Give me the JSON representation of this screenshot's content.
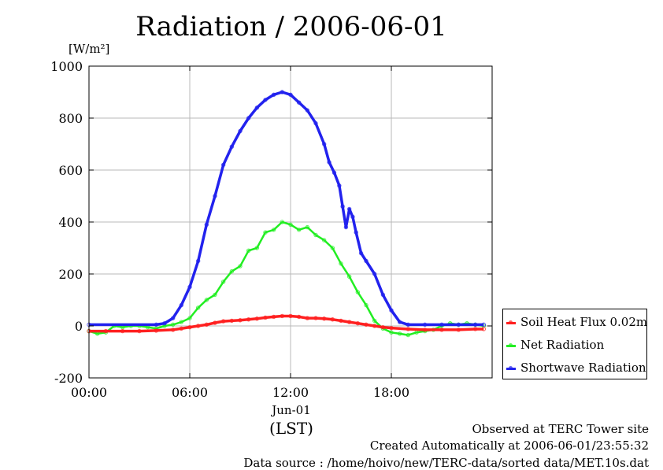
{
  "title": "Radiation / 2006-06-01",
  "unit_label": "[W/m²]",
  "x_date_label": "Jun-01",
  "x_axis_label": "(LST)",
  "footer": {
    "line1": "Observed at TERC Tower site",
    "line2": "Created Automatically at 2006-06-01/23:55:32",
    "line3": "Data source : /home/hoivo/new/TERC-data/sorted  data/MET.10s.dat"
  },
  "legend": [
    {
      "label": "Soil Heat Flux 0.02m",
      "color": "#ff2020"
    },
    {
      "label": "Net Radiation",
      "color": "#22ee22"
    },
    {
      "label": "Shortwave Radiation",
      "color": "#2222ee"
    }
  ],
  "chart_data": {
    "type": "line",
    "title": "Radiation / 2006-06-01",
    "ylabel": "[W/m²]",
    "xlabel": "(LST)",
    "xlim": [
      0,
      24
    ],
    "ylim": [
      -200,
      1000
    ],
    "y_ticks": [
      -200,
      0,
      200,
      400,
      600,
      800,
      1000
    ],
    "x_ticks": [
      {
        "x": 0,
        "label": "00:00"
      },
      {
        "x": 6,
        "label": "06:00"
      },
      {
        "x": 12,
        "label": "12:00"
      },
      {
        "x": 18,
        "label": "18:00"
      }
    ],
    "grid": true,
    "legend_position": "right",
    "series": [
      {
        "name": "Shortwave Radiation",
        "color": "#2222ee",
        "x": [
          0,
          4,
          4.5,
          5,
          5.5,
          6,
          6.5,
          7,
          7.5,
          8,
          8.5,
          9,
          9.5,
          10,
          10.5,
          11,
          11.5,
          12,
          12.5,
          13,
          13.5,
          14,
          14.3,
          14.6,
          14.9,
          15.1,
          15.3,
          15.5,
          15.7,
          15.9,
          16.2,
          16.5,
          17,
          17.5,
          18,
          18.5,
          19,
          20,
          21,
          22,
          23,
          23.5
        ],
        "y": [
          5,
          5,
          10,
          30,
          80,
          150,
          250,
          390,
          500,
          620,
          690,
          750,
          800,
          840,
          870,
          890,
          900,
          890,
          860,
          830,
          780,
          700,
          630,
          590,
          540,
          460,
          380,
          450,
          420,
          360,
          280,
          250,
          200,
          120,
          60,
          15,
          5,
          5,
          5,
          5,
          5,
          5
        ]
      },
      {
        "name": "Net Radiation",
        "color": "#22ee22",
        "x": [
          0,
          0.5,
          1,
          1.5,
          2,
          2.5,
          3,
          3.5,
          4,
          4.5,
          5,
          5.5,
          6,
          6.5,
          7,
          7.5,
          8,
          8.5,
          9,
          9.5,
          10,
          10.5,
          11,
          11.5,
          12,
          12.5,
          13,
          13.5,
          14,
          14.5,
          15,
          15.5,
          16,
          16.5,
          17,
          17.5,
          18,
          18.5,
          19,
          19.5,
          20,
          20.5,
          21,
          21.5,
          22,
          22.5,
          23,
          23.5
        ],
        "y": [
          -20,
          -30,
          -25,
          0,
          -5,
          0,
          0,
          -5,
          -10,
          0,
          5,
          15,
          30,
          70,
          100,
          120,
          170,
          210,
          230,
          290,
          300,
          360,
          370,
          400,
          390,
          370,
          380,
          350,
          330,
          300,
          240,
          190,
          130,
          80,
          20,
          -10,
          -25,
          -30,
          -35,
          -25,
          -20,
          -15,
          0,
          10,
          5,
          10,
          5,
          0
        ]
      },
      {
        "name": "Soil Heat Flux 0.02m",
        "color": "#ff2020",
        "x": [
          0,
          1,
          2,
          3,
          4,
          5,
          5.5,
          6,
          6.5,
          7,
          7.5,
          8,
          8.5,
          9,
          9.5,
          10,
          10.5,
          11,
          11.5,
          12,
          12.5,
          13,
          13.5,
          14,
          14.5,
          15,
          15.5,
          16,
          16.5,
          17,
          17.5,
          18,
          19,
          20,
          21,
          22,
          23,
          23.5
        ],
        "y": [
          -20,
          -20,
          -20,
          -20,
          -18,
          -15,
          -10,
          -5,
          0,
          5,
          12,
          18,
          20,
          22,
          25,
          28,
          32,
          35,
          38,
          38,
          35,
          30,
          30,
          28,
          25,
          20,
          15,
          10,
          5,
          0,
          -5,
          -8,
          -12,
          -15,
          -15,
          -15,
          -12,
          -12
        ]
      }
    ]
  }
}
